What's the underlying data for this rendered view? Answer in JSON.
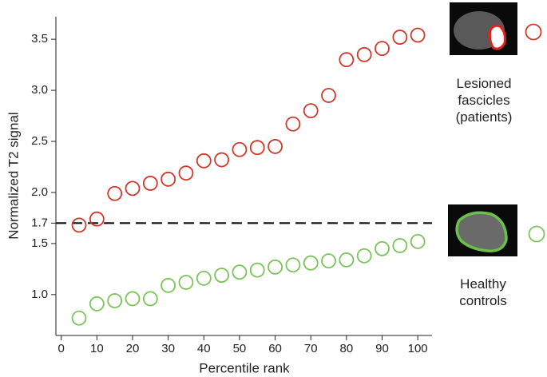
{
  "chart_data": {
    "type": "scatter",
    "x_label": "Percentile rank",
    "y_label": "Normalized T2 signal",
    "xlim": [
      -1.5,
      104
    ],
    "xticks": [
      0,
      10,
      20,
      30,
      40,
      50,
      60,
      70,
      80,
      90,
      100
    ],
    "ylim": [
      0.6,
      3.72
    ],
    "yticks": [
      {
        "value": 1,
        "label": "1.0"
      },
      1.5,
      1.7,
      {
        "value": 2,
        "label": "2.0"
      },
      2.5,
      {
        "value": 3,
        "label": "3.0"
      },
      3.5
    ],
    "threshold": 1.7,
    "series": [
      {
        "name": "Lesioned fascicles (patients)",
        "color": "#d0382a",
        "x": [
          5,
          10,
          15,
          20,
          25,
          30,
          35,
          40,
          45,
          50,
          55,
          60,
          65,
          70,
          75,
          80,
          85,
          90,
          95,
          100
        ],
        "values": [
          1.68,
          1.74,
          1.99,
          2.04,
          2.09,
          2.13,
          2.19,
          2.31,
          2.32,
          2.42,
          2.44,
          2.45,
          2.67,
          2.8,
          2.95,
          3.3,
          3.35,
          3.41,
          3.52,
          3.54
        ]
      },
      {
        "name": "Healthy controls",
        "color": "#7cc35a",
        "x": [
          5,
          10,
          15,
          20,
          25,
          30,
          35,
          40,
          45,
          50,
          55,
          60,
          65,
          70,
          75,
          80,
          85,
          90,
          95,
          100
        ],
        "values": [
          0.77,
          0.91,
          0.94,
          0.96,
          0.96,
          1.09,
          1.12,
          1.16,
          1.19,
          1.22,
          1.24,
          1.27,
          1.29,
          1.31,
          1.33,
          1.34,
          1.38,
          1.45,
          1.48,
          1.52
        ]
      }
    ]
  }
}
